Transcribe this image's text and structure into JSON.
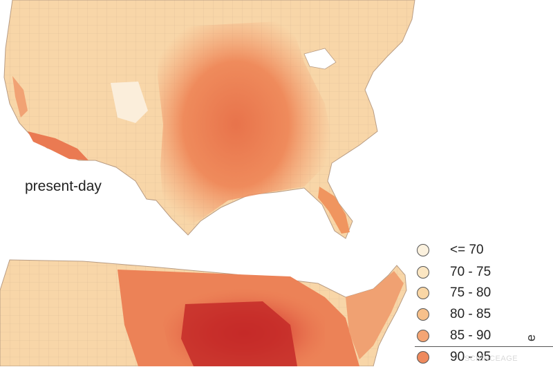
{
  "panels": {
    "top_label": "present-day"
  },
  "legend": {
    "items": [
      {
        "label": "<= 70",
        "color": "#fbf1de"
      },
      {
        "label": "70 - 75",
        "color": "#fbe6c2"
      },
      {
        "label": "75 - 80",
        "color": "#f9d6a5"
      },
      {
        "label": "80 - 85",
        "color": "#f6c08b"
      },
      {
        "label": "85 - 90",
        "color": "#f4a574"
      },
      {
        "label": "90 - 95",
        "color": "#ee8a5e"
      }
    ]
  },
  "side_text": "e",
  "watermark": "SCIENCEAGE"
}
